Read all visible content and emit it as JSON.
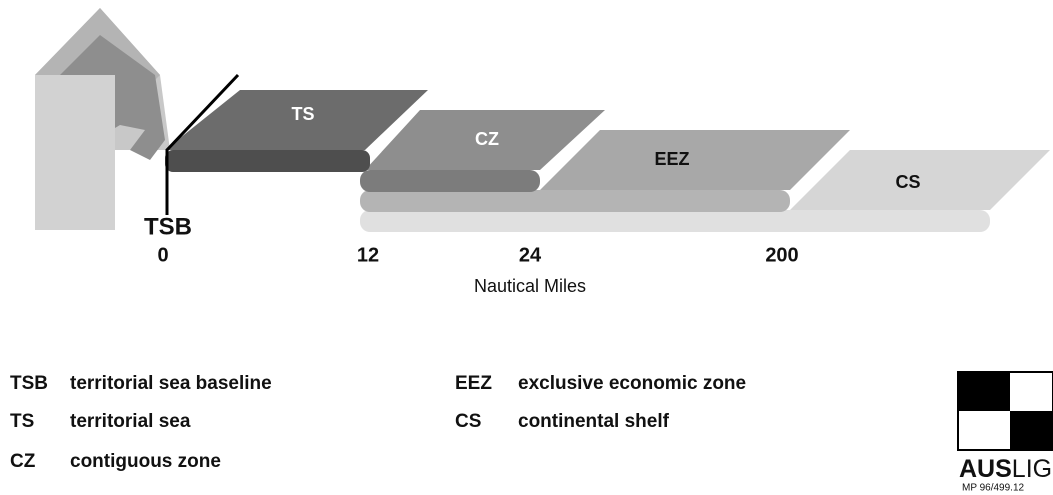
{
  "zones": [
    "TS",
    "CZ",
    "EEZ",
    "CS"
  ],
  "baseline_label": "TSB",
  "distances": [
    "0",
    "12",
    "24",
    "200"
  ],
  "axis_label": "Nautical Miles",
  "legend": [
    {
      "abbr": "TSB",
      "description": "territorial sea baseline"
    },
    {
      "abbr": "TS",
      "description": "territorial sea"
    },
    {
      "abbr": "CZ",
      "description": "contiguous zone"
    },
    {
      "abbr": "EEZ",
      "description": "exclusive economic zone"
    },
    {
      "abbr": "CS",
      "description": "continental shelf"
    }
  ],
  "logo": {
    "bold": "AUS",
    "rest": "LIG",
    "code": "MP 96/499.12"
  }
}
